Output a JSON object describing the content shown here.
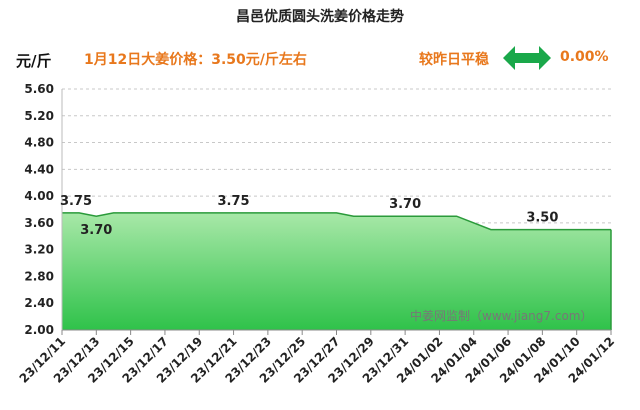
{
  "title": "昌邑优质圆头洗姜价格走势",
  "unit": "元/斤",
  "headline": "1月12日大姜价格：3.50元/斤左右",
  "status": "较昨日平稳",
  "change": "0.00%",
  "watermark": "中姜网监制（www.jiang7.com）",
  "icons": {
    "trend": "double-arrow-icon"
  },
  "colors": {
    "accent": "#e8781d",
    "line": "#2a9a3a",
    "fill_top": "#a8e8a8",
    "fill_bottom": "#2fc24a",
    "arrow": "#1aa84a"
  },
  "chart_data": {
    "type": "area",
    "ylim": [
      2.0,
      5.6
    ],
    "yticks": [
      "2.00",
      "2.40",
      "2.80",
      "3.20",
      "3.60",
      "4.00",
      "4.40",
      "4.80",
      "5.20",
      "5.60"
    ],
    "grid": "horizontal dashed",
    "x_start": "2023-12-11",
    "x_end": "2024-01-12",
    "x_ticks": [
      "23/12/11",
      "23/12/13",
      "23/12/15",
      "23/12/17",
      "23/12/19",
      "23/12/21",
      "23/12/23",
      "23/12/25",
      "23/12/27",
      "23/12/29",
      "23/12/31",
      "24/01/02",
      "24/01/04",
      "24/01/06",
      "24/01/08",
      "24/01/10",
      "24/01/12"
    ],
    "series": [
      {
        "points": [
          {
            "x": "2023-12-11",
            "y": 3.75
          },
          {
            "x": "2023-12-12",
            "y": 3.75
          },
          {
            "x": "2023-12-13",
            "y": 3.7
          },
          {
            "x": "2023-12-14",
            "y": 3.75
          },
          {
            "x": "2023-12-27",
            "y": 3.75
          },
          {
            "x": "2023-12-28",
            "y": 3.7
          },
          {
            "x": "2024-01-03",
            "y": 3.7
          },
          {
            "x": "2024-01-05",
            "y": 3.5
          },
          {
            "x": "2024-01-12",
            "y": 3.5
          }
        ]
      }
    ],
    "data_labels": [
      {
        "x": "2023-12-11",
        "y": 3.75,
        "text": "3.75",
        "pos": "above"
      },
      {
        "x": "2023-12-13",
        "y": 3.7,
        "text": "3.70",
        "pos": "below"
      },
      {
        "x": "2023-12-21",
        "y": 3.75,
        "text": "3.75",
        "pos": "above"
      },
      {
        "x": "2023-12-31",
        "y": 3.7,
        "text": "3.70",
        "pos": "above"
      },
      {
        "x": "2024-01-08",
        "y": 3.5,
        "text": "3.50",
        "pos": "above"
      }
    ]
  }
}
